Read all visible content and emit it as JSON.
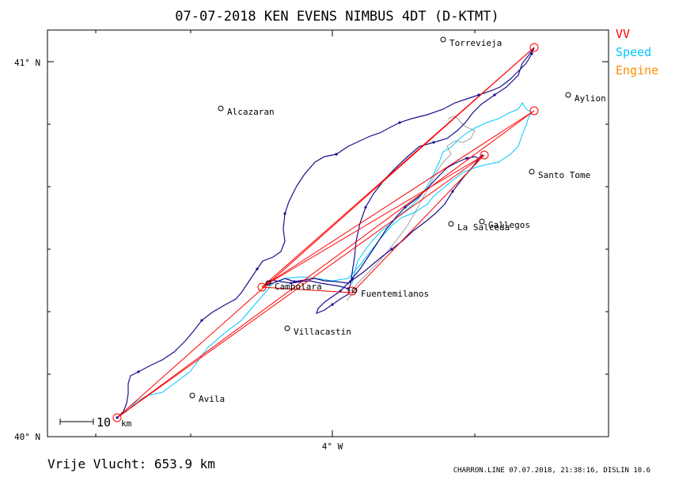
{
  "title": "07-07-2018   KEN EVENS   NIMBUS 4DT (D-KTMT)",
  "legend": [
    {
      "label": "VV",
      "color": "#ff0000"
    },
    {
      "label": "Speed",
      "color": "#00c8ff"
    },
    {
      "label": "Engine",
      "color": "#ff8c00"
    }
  ],
  "axes": {
    "lat_top": "41° N",
    "lat_bottom": "40° N",
    "lon_label": "4° W"
  },
  "scale": {
    "label": "10",
    "unit": "km"
  },
  "distance": "Vrije Vlucht:  653.9 km",
  "footer": "CHARRON.LINE 07.07.2018, 21:38:16, DISLIN 10.6",
  "colors": {
    "track": "#1a0f8c",
    "speed": "#00c8ff",
    "triangle": "#ff0000",
    "gray": "#a0a0a0",
    "frame": "#000000"
  },
  "places": [
    {
      "name": "Torrevieja"
    },
    {
      "name": "Aylion"
    },
    {
      "name": "Alcazaran"
    },
    {
      "name": "Santo Tome"
    },
    {
      "name": "Gallegos"
    },
    {
      "name": "La Salceda"
    },
    {
      "name": "Campolara"
    },
    {
      "name": "Fuentemilanos"
    },
    {
      "name": "Villacastin"
    },
    {
      "name": "Avila"
    }
  ]
}
